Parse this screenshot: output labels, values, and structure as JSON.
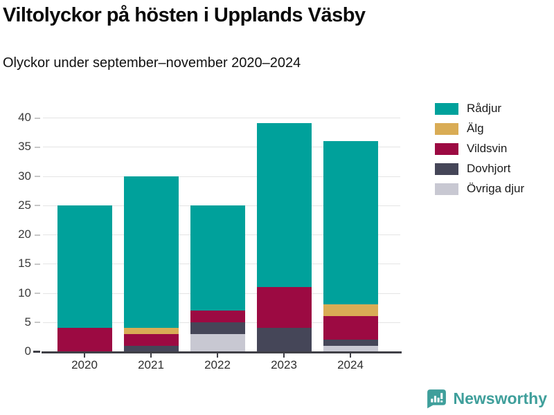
{
  "title": "Viltolyckor på hösten i Upplands Väsby",
  "subtitle": "Olyckor under september–november 2020–2024",
  "footer": {
    "brand": "Newsworthy",
    "brand_color": "#3f9f9b",
    "logo_icon": "newsworthy-speech-bubble-chart-icon"
  },
  "chart_data": {
    "type": "bar",
    "stacked": true,
    "title": "Viltolyckor på hösten i Upplands Väsby",
    "subtitle": "Olyckor under september–november 2020–2024",
    "categories": [
      "2020",
      "2021",
      "2022",
      "2023",
      "2024"
    ],
    "series": [
      {
        "name": "Rådjur",
        "color": "#00a19b",
        "values": [
          21,
          26,
          18,
          28,
          28
        ]
      },
      {
        "name": "Älg",
        "color": "#d9ac55",
        "values": [
          0,
          1,
          0,
          0,
          2
        ]
      },
      {
        "name": "Vildsvin",
        "color": "#9c0a42",
        "values": [
          4,
          2,
          2,
          7,
          4
        ]
      },
      {
        "name": "Dovhjort",
        "color": "#454658",
        "values": [
          0,
          1,
          2,
          4,
          1
        ]
      },
      {
        "name": "Övriga djur",
        "color": "#c8c8d2",
        "values": [
          0,
          0,
          3,
          0,
          1
        ]
      }
    ],
    "totals": [
      25,
      30,
      25,
      39,
      36
    ],
    "stack_order_bottom_to_top": [
      "Övriga djur",
      "Dovhjort",
      "Vildsvin",
      "Älg",
      "Rådjur"
    ],
    "yticks": [
      0,
      5,
      10,
      15,
      20,
      25,
      30,
      35,
      40
    ],
    "ylim": [
      0,
      40
    ],
    "xlabel": "",
    "ylabel": "",
    "grid": "horizontal",
    "legend_position": "top-right",
    "axis_color": "#3f3f46",
    "gridline_color": "#e4e4e4"
  }
}
